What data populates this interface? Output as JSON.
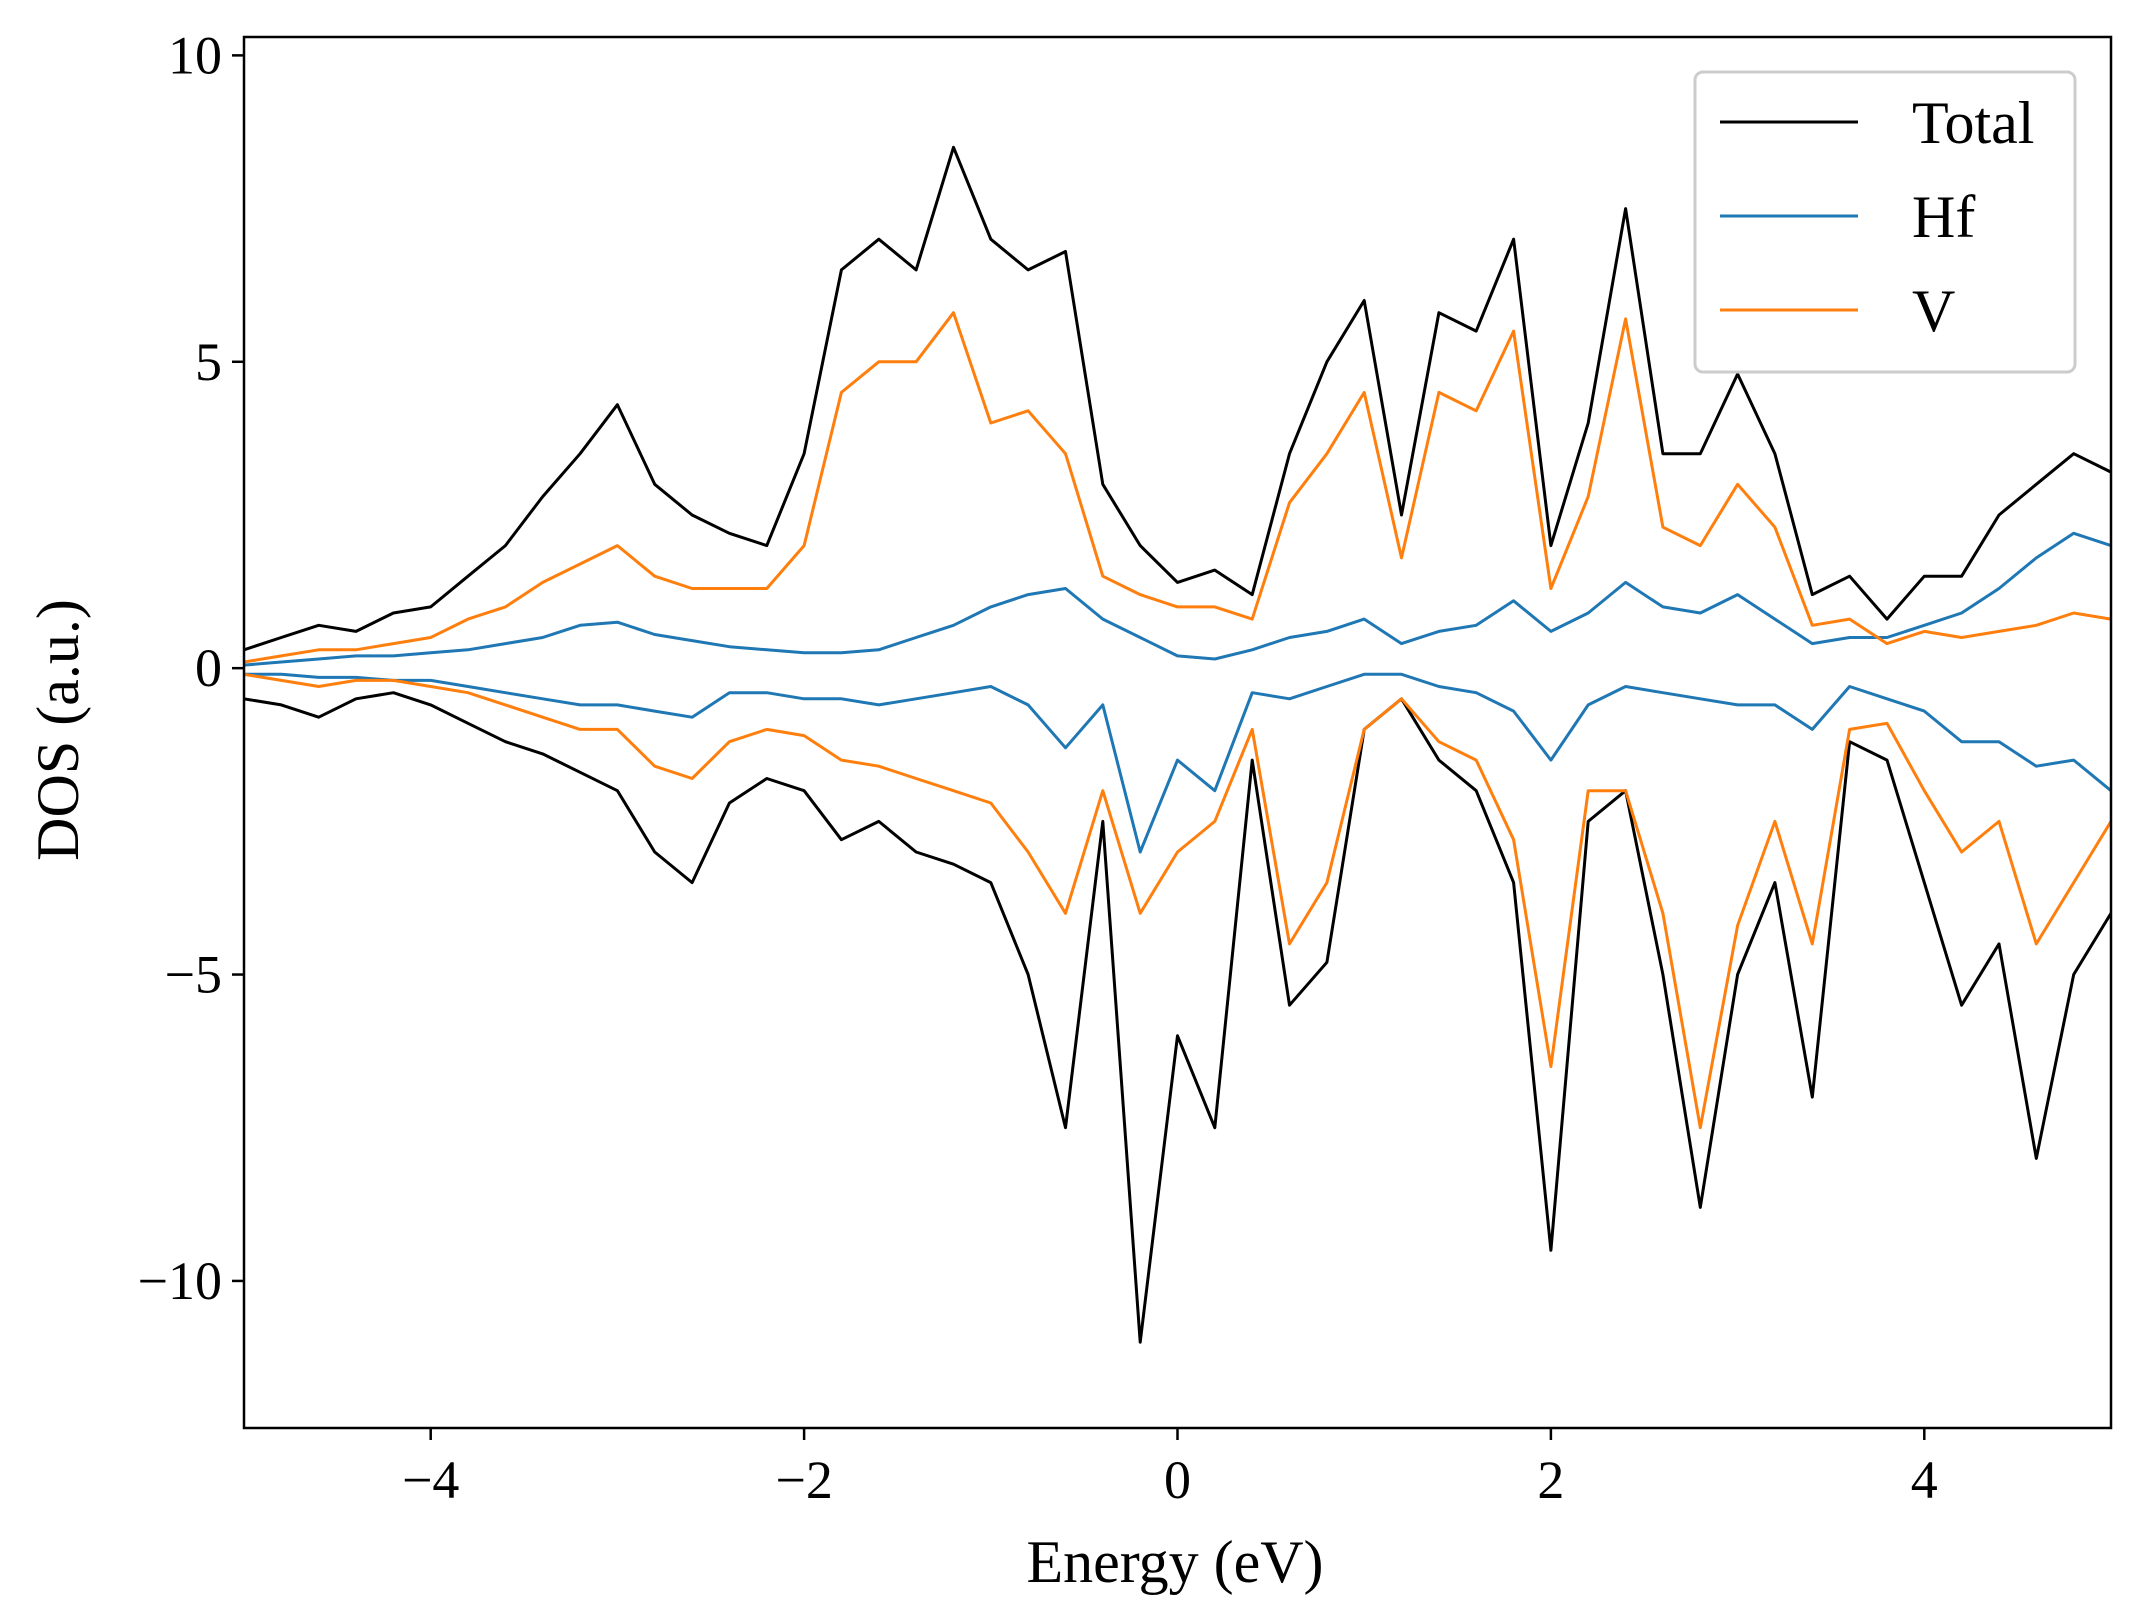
{
  "chart_data": {
    "type": "line",
    "title": "",
    "xlabel": "Energy (eV)",
    "ylabel": "DOS (a.u.)",
    "xlim": [
      -5,
      5
    ],
    "ylim": [
      -12.4,
      10.3
    ],
    "xticks": [
      -4,
      -2,
      0,
      2,
      4
    ],
    "yticks": [
      -10,
      -5,
      0,
      5,
      10
    ],
    "xtick_labels": [
      "−4",
      "−2",
      "0",
      "2",
      "4"
    ],
    "ytick_labels": [
      "−10",
      "−5",
      "0",
      "5",
      "10"
    ],
    "grid": false,
    "legend": {
      "position": "top-right",
      "entries": [
        "Total",
        "Hf",
        "V"
      ]
    },
    "x": [
      -5.0,
      -4.8,
      -4.6,
      -4.4,
      -4.2,
      -4.0,
      -3.8,
      -3.6,
      -3.4,
      -3.2,
      -3.0,
      -2.8,
      -2.6,
      -2.4,
      -2.2,
      -2.0,
      -1.8,
      -1.6,
      -1.4,
      -1.2,
      -1.0,
      -0.8,
      -0.6,
      -0.4,
      -0.2,
      0.0,
      0.2,
      0.4,
      0.6,
      0.8,
      1.0,
      1.2,
      1.4,
      1.6,
      1.8,
      2.0,
      2.2,
      2.4,
      2.6,
      2.8,
      3.0,
      3.2,
      3.4,
      3.6,
      3.8,
      4.0,
      4.2,
      4.4,
      4.6,
      4.8,
      5.0
    ],
    "series": [
      {
        "name": "Total",
        "color": "#000000",
        "spin_up": [
          0.3,
          0.5,
          0.7,
          0.6,
          0.9,
          1.0,
          1.5,
          2.0,
          2.8,
          3.5,
          4.3,
          3.0,
          2.5,
          2.2,
          2.0,
          3.5,
          6.5,
          7.0,
          6.5,
          8.5,
          7.0,
          6.5,
          6.8,
          3.0,
          2.0,
          1.4,
          1.6,
          1.2,
          3.5,
          5.0,
          6.0,
          2.5,
          5.8,
          5.5,
          7.0,
          2.0,
          4.0,
          7.5,
          3.5,
          3.5,
          4.8,
          3.5,
          1.2,
          1.5,
          0.8,
          1.5,
          1.5,
          2.5,
          3.0,
          3.5,
          3.2
        ],
        "spin_down": [
          -0.5,
          -0.6,
          -0.8,
          -0.5,
          -0.4,
          -0.6,
          -0.9,
          -1.2,
          -1.4,
          -1.7,
          -2.0,
          -3.0,
          -3.5,
          -2.2,
          -1.8,
          -2.0,
          -2.8,
          -2.5,
          -3.0,
          -3.2,
          -3.5,
          -5.0,
          -7.5,
          -2.5,
          -11.0,
          -6.0,
          -7.5,
          -1.5,
          -5.5,
          -4.8,
          -1.0,
          -0.5,
          -1.5,
          -2.0,
          -3.5,
          -9.5,
          -2.5,
          -2.0,
          -5.0,
          -8.8,
          -5.0,
          -3.5,
          -7.0,
          -1.2,
          -1.5,
          -3.5,
          -5.5,
          -4.5,
          -8.0,
          -5.0,
          -4.0
        ]
      },
      {
        "name": "Hf",
        "color": "#1f77b4",
        "spin_up": [
          0.05,
          0.1,
          0.15,
          0.2,
          0.2,
          0.25,
          0.3,
          0.4,
          0.5,
          0.7,
          0.75,
          0.55,
          0.45,
          0.35,
          0.3,
          0.25,
          0.25,
          0.3,
          0.5,
          0.7,
          1.0,
          1.2,
          1.3,
          0.8,
          0.5,
          0.2,
          0.15,
          0.3,
          0.5,
          0.6,
          0.8,
          0.4,
          0.6,
          0.7,
          1.1,
          0.6,
          0.9,
          1.4,
          1.0,
          0.9,
          1.2,
          0.8,
          0.4,
          0.5,
          0.5,
          0.7,
          0.9,
          1.3,
          1.8,
          2.2,
          2.0
        ],
        "spin_down": [
          -0.1,
          -0.1,
          -0.15,
          -0.15,
          -0.2,
          -0.2,
          -0.3,
          -0.4,
          -0.5,
          -0.6,
          -0.6,
          -0.7,
          -0.8,
          -0.4,
          -0.4,
          -0.5,
          -0.5,
          -0.6,
          -0.5,
          -0.4,
          -0.3,
          -0.6,
          -1.3,
          -0.6,
          -3.0,
          -1.5,
          -2.0,
          -0.4,
          -0.5,
          -0.3,
          -0.1,
          -0.1,
          -0.3,
          -0.4,
          -0.7,
          -1.5,
          -0.6,
          -0.3,
          -0.4,
          -0.5,
          -0.6,
          -0.6,
          -1.0,
          -0.3,
          -0.5,
          -0.7,
          -1.2,
          -1.2,
          -1.6,
          -1.5,
          -2.0
        ]
      },
      {
        "name": "V",
        "color": "#ff7f0e",
        "spin_up": [
          0.1,
          0.2,
          0.3,
          0.3,
          0.4,
          0.5,
          0.8,
          1.0,
          1.4,
          1.7,
          2.0,
          1.5,
          1.3,
          1.3,
          1.3,
          2.0,
          4.5,
          5.0,
          5.0,
          5.8,
          4.0,
          4.2,
          3.5,
          1.5,
          1.2,
          1.0,
          1.0,
          0.8,
          2.7,
          3.5,
          4.5,
          1.8,
          4.5,
          4.2,
          5.5,
          1.3,
          2.8,
          5.7,
          2.3,
          2.0,
          3.0,
          2.3,
          0.7,
          0.8,
          0.4,
          0.6,
          0.5,
          0.6,
          0.7,
          0.9,
          0.8
        ],
        "spin_down": [
          -0.1,
          -0.2,
          -0.3,
          -0.2,
          -0.2,
          -0.3,
          -0.4,
          -0.6,
          -0.8,
          -1.0,
          -1.0,
          -1.6,
          -1.8,
          -1.2,
          -1.0,
          -1.1,
          -1.5,
          -1.6,
          -1.8,
          -2.0,
          -2.2,
          -3.0,
          -4.0,
          -2.0,
          -4.0,
          -3.0,
          -2.5,
          -1.0,
          -4.5,
          -3.5,
          -1.0,
          -0.5,
          -1.2,
          -1.5,
          -2.8,
          -6.5,
          -2.0,
          -2.0,
          -4.0,
          -7.5,
          -4.2,
          -2.5,
          -4.5,
          -1.0,
          -0.9,
          -2.0,
          -3.0,
          -2.5,
          -4.5,
          -3.5,
          -2.5
        ]
      }
    ]
  }
}
